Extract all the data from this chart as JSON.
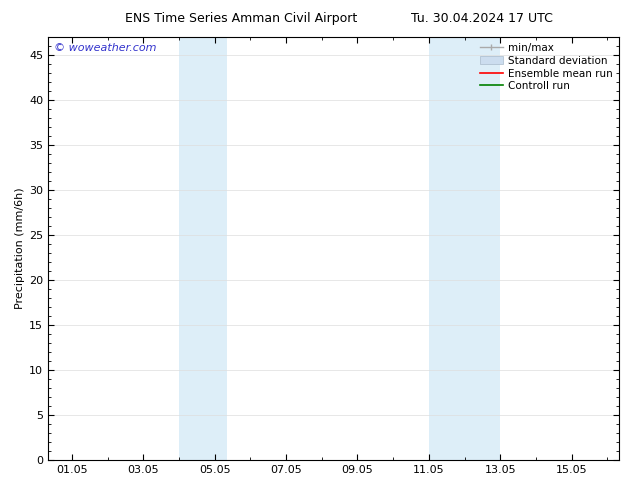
{
  "title_left": "ENS Time Series Amman Civil Airport",
  "title_right": "Tu. 30.04.2024 17 UTC",
  "ylabel": "Precipitation (mm/6h)",
  "watermark": "© woweather.com",
  "bg_color": "#ffffff",
  "plot_bg_color": "#ffffff",
  "shaded_bands": [
    {
      "x_start": 4.0,
      "x_end": 5.33,
      "color": "#ddeef8"
    },
    {
      "x_start": 11.0,
      "x_end": 13.0,
      "color": "#ddeef8"
    }
  ],
  "x_ticks": [
    1,
    3,
    5,
    7,
    9,
    11,
    13,
    15
  ],
  "x_tick_labels": [
    "01.05",
    "03.05",
    "05.05",
    "07.05",
    "09.05",
    "11.05",
    "13.05",
    "15.05"
  ],
  "xlim": [
    0.33,
    16.33
  ],
  "ylim": [
    0,
    47
  ],
  "y_ticks": [
    0,
    5,
    10,
    15,
    20,
    25,
    30,
    35,
    40,
    45
  ],
  "legend_items": [
    {
      "label": "min/max",
      "color": "#aaaaaa",
      "lw": 1.2
    },
    {
      "label": "Standard deviation",
      "color": "#ccddef",
      "lw": 8
    },
    {
      "label": "Ensemble mean run",
      "color": "#ff0000",
      "lw": 1.5
    },
    {
      "label": "Controll run",
      "color": "#008000",
      "lw": 1.5
    }
  ],
  "title_fontsize": 9,
  "axis_label_fontsize": 8,
  "tick_fontsize": 8,
  "legend_fontsize": 7.5,
  "watermark_color": "#3333cc",
  "watermark_fontsize": 8,
  "grid_color": "#dddddd",
  "spine_color": "#000000",
  "tick_color": "#000000"
}
